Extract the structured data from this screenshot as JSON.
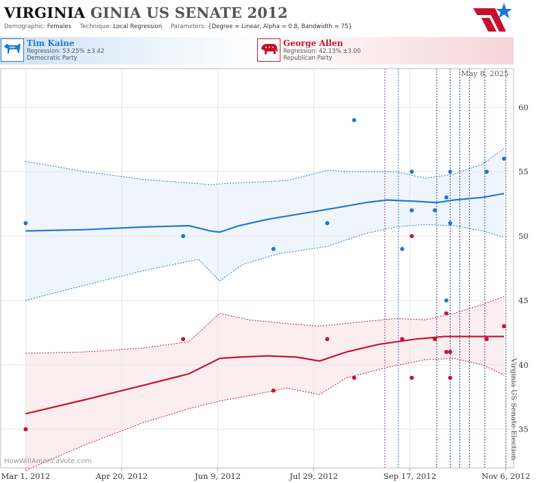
{
  "header": {
    "title_state": "VIRGINIA",
    "title_rest": "GINIA US SENATE 2012",
    "demographic_label": "Demographic:",
    "demographic_value": "Females",
    "technique_label": "Technique:",
    "technique_value": "Local Regression",
    "parameters_label": "Parameters:",
    "parameters_value": "{Degree = Linear, Alpha = 0.8, Bandwidth = 75}"
  },
  "candidates": [
    {
      "name": "Tim Kaine",
      "regression": "Regression: 53.25% ±3.42",
      "party": "Democratic Party",
      "color": "#1f77d4",
      "icon": "donkey-icon"
    },
    {
      "name": "George Allen",
      "regression": "Regression: 42.13% ±3.00",
      "party": "Republican Party",
      "color": "#c8102e",
      "icon": "elephant-icon"
    }
  ],
  "date_label": "May 8, 2025",
  "watermark": "HowWillAmericaVote.com",
  "chart_data": {
    "type": "scatter",
    "x_tick_labels": [
      "Mar 1, 2012",
      "Apr 20, 2012",
      "Jun 9, 2012",
      "Jul 29, 2012",
      "Sep 17, 2012",
      "Nov 6, 2012"
    ],
    "xlim": [
      "2012-02-17",
      "2012-11-10"
    ],
    "ylim": [
      32,
      63
    ],
    "y_ticks": [
      35,
      40,
      45,
      50,
      55,
      60
    ],
    "grid": true,
    "event_line": {
      "x": "2012-11-06",
      "label": "Virginia US Senate Election"
    },
    "poll_lines": [
      {
        "x": "2012-09-04",
        "color": "#a0306a"
      },
      {
        "x": "2012-09-11",
        "color": "#1f6fb5"
      },
      {
        "x": "2012-10-01",
        "color": "#1f3f8f"
      },
      {
        "x": "2012-10-08",
        "color": "#1f3f8f"
      },
      {
        "x": "2012-10-13",
        "color": "#1f3f8f"
      },
      {
        "x": "2012-10-18",
        "color": "#1f3f8f"
      },
      {
        "x": "2012-10-26",
        "color": "#1f3f8f"
      }
    ],
    "series": [
      {
        "name": "Tim Kaine",
        "color": "#1f77d4",
        "points": [
          [
            "2012-03-01",
            51
          ],
          [
            "2012-05-22",
            50
          ],
          [
            "2012-07-08",
            49
          ],
          [
            "2012-08-05",
            51
          ],
          [
            "2012-08-19",
            59
          ],
          [
            "2012-09-18",
            52
          ],
          [
            "2012-09-18",
            55
          ],
          [
            "2012-09-13",
            49
          ],
          [
            "2012-09-30",
            52
          ],
          [
            "2012-10-06",
            53
          ],
          [
            "2012-10-08",
            55
          ],
          [
            "2012-10-08",
            51
          ],
          [
            "2012-10-06",
            45
          ],
          [
            "2012-10-27",
            55
          ],
          [
            "2012-11-05",
            56
          ]
        ],
        "fit": [
          [
            "2012-03-01",
            50.4
          ],
          [
            "2012-04-01",
            50.5
          ],
          [
            "2012-05-01",
            50.7
          ],
          [
            "2012-05-25",
            50.8
          ],
          [
            "2012-06-05",
            50.4
          ],
          [
            "2012-06-10",
            50.3
          ],
          [
            "2012-06-20",
            50.8
          ],
          [
            "2012-07-05",
            51.3
          ],
          [
            "2012-07-25",
            51.8
          ],
          [
            "2012-08-10",
            52.2
          ],
          [
            "2012-08-25",
            52.6
          ],
          [
            "2012-09-05",
            52.8
          ],
          [
            "2012-09-20",
            52.7
          ],
          [
            "2012-10-01",
            52.6
          ],
          [
            "2012-10-10",
            52.8
          ],
          [
            "2012-10-25",
            53.0
          ],
          [
            "2012-11-05",
            53.3
          ]
        ],
        "upper": [
          [
            "2012-03-01",
            55.8
          ],
          [
            "2012-04-01",
            55.0
          ],
          [
            "2012-05-01",
            54.4
          ],
          [
            "2012-06-05",
            54.0
          ],
          [
            "2012-06-15",
            54.1
          ],
          [
            "2012-07-15",
            54.3
          ],
          [
            "2012-08-05",
            55.1
          ],
          [
            "2012-08-20",
            55.0
          ],
          [
            "2012-09-10",
            55.0
          ],
          [
            "2012-09-25",
            54.5
          ],
          [
            "2012-10-10",
            54.8
          ],
          [
            "2012-10-25",
            55.6
          ],
          [
            "2012-11-05",
            56.8
          ]
        ],
        "lower": [
          [
            "2012-03-01",
            45.0
          ],
          [
            "2012-04-01",
            46.2
          ],
          [
            "2012-05-01",
            47.3
          ],
          [
            "2012-05-30",
            48.2
          ],
          [
            "2012-06-10",
            46.5
          ],
          [
            "2012-06-22",
            47.8
          ],
          [
            "2012-07-10",
            48.6
          ],
          [
            "2012-08-05",
            49.2
          ],
          [
            "2012-08-25",
            50.2
          ],
          [
            "2012-09-10",
            50.7
          ],
          [
            "2012-09-25",
            50.9
          ],
          [
            "2012-10-10",
            50.8
          ],
          [
            "2012-10-25",
            50.4
          ],
          [
            "2012-11-05",
            49.9
          ]
        ]
      },
      {
        "name": "George Allen",
        "color": "#c8102e",
        "points": [
          [
            "2012-03-01",
            35
          ],
          [
            "2012-05-22",
            42
          ],
          [
            "2012-07-08",
            38
          ],
          [
            "2012-08-05",
            42
          ],
          [
            "2012-08-19",
            39
          ],
          [
            "2012-09-13",
            42
          ],
          [
            "2012-09-18",
            39
          ],
          [
            "2012-09-18",
            50
          ],
          [
            "2012-09-30",
            42
          ],
          [
            "2012-10-06",
            41
          ],
          [
            "2012-10-08",
            41
          ],
          [
            "2012-10-08",
            39
          ],
          [
            "2012-10-06",
            44
          ],
          [
            "2012-10-27",
            42
          ],
          [
            "2012-11-05",
            43
          ]
        ],
        "fit": [
          [
            "2012-03-01",
            36.2
          ],
          [
            "2012-04-01",
            37.3
          ],
          [
            "2012-05-01",
            38.4
          ],
          [
            "2012-05-25",
            39.3
          ],
          [
            "2012-06-10",
            40.5
          ],
          [
            "2012-06-20",
            40.6
          ],
          [
            "2012-07-05",
            40.7
          ],
          [
            "2012-07-20",
            40.6
          ],
          [
            "2012-08-01",
            40.3
          ],
          [
            "2012-08-15",
            41.0
          ],
          [
            "2012-09-01",
            41.6
          ],
          [
            "2012-09-20",
            42.0
          ],
          [
            "2012-10-05",
            42.2
          ],
          [
            "2012-10-20",
            42.2
          ],
          [
            "2012-11-05",
            42.2
          ]
        ],
        "upper": [
          [
            "2012-03-01",
            40.9
          ],
          [
            "2012-04-01",
            41.0
          ],
          [
            "2012-05-01",
            41.3
          ],
          [
            "2012-05-25",
            41.8
          ],
          [
            "2012-06-10",
            44.0
          ],
          [
            "2012-06-25",
            43.5
          ],
          [
            "2012-07-15",
            43.2
          ],
          [
            "2012-08-01",
            43.0
          ],
          [
            "2012-08-20",
            43.3
          ],
          [
            "2012-09-10",
            43.6
          ],
          [
            "2012-09-25",
            43.5
          ],
          [
            "2012-10-10",
            44.0
          ],
          [
            "2012-10-25",
            44.7
          ],
          [
            "2012-11-05",
            45.3
          ]
        ],
        "lower": [
          [
            "2012-03-01",
            31.8
          ],
          [
            "2012-04-01",
            33.8
          ],
          [
            "2012-05-01",
            35.5
          ],
          [
            "2012-05-25",
            36.6
          ],
          [
            "2012-06-10",
            37.2
          ],
          [
            "2012-06-25",
            37.6
          ],
          [
            "2012-07-15",
            38.2
          ],
          [
            "2012-08-01",
            37.7
          ],
          [
            "2012-08-15",
            39.0
          ],
          [
            "2012-09-05",
            39.8
          ],
          [
            "2012-09-25",
            40.4
          ],
          [
            "2012-10-10",
            40.5
          ],
          [
            "2012-10-25",
            40.0
          ],
          [
            "2012-11-05",
            39.2
          ]
        ]
      }
    ]
  }
}
